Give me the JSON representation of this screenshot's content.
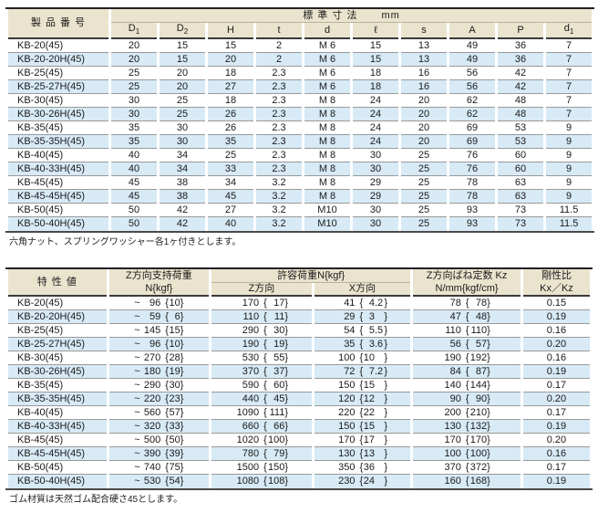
{
  "colors": {
    "header_bg": "#EAE3CE",
    "stripe_bg": "#D7EAF6"
  },
  "table1": {
    "product_header": "製 品 番 号",
    "dim_header": "標 準 寸 法",
    "dim_unit": "mm",
    "columns": [
      {
        "base": "D",
        "sub": "1"
      },
      {
        "base": "D",
        "sub": "2"
      },
      {
        "base": "H",
        "sub": ""
      },
      {
        "base": "t",
        "sub": ""
      },
      {
        "base": "d",
        "sub": ""
      },
      {
        "base": "ℓ",
        "sub": ""
      },
      {
        "base": "s",
        "sub": ""
      },
      {
        "base": "A",
        "sub": ""
      },
      {
        "base": "P",
        "sub": ""
      },
      {
        "base": "d",
        "sub": "1"
      }
    ],
    "rows": [
      {
        "name": "KB-20(45)",
        "values": [
          "20",
          "15",
          "15",
          "2",
          "M 6",
          "15",
          "13",
          "49",
          "36",
          "7"
        ]
      },
      {
        "name": "KB-20-20H(45)",
        "values": [
          "20",
          "15",
          "20",
          "2",
          "M 6",
          "15",
          "13",
          "49",
          "36",
          "7"
        ]
      },
      {
        "name": "KB-25(45)",
        "values": [
          "25",
          "20",
          "18",
          "2.3",
          "M 6",
          "18",
          "16",
          "56",
          "42",
          "7"
        ]
      },
      {
        "name": "KB-25-27H(45)",
        "values": [
          "25",
          "20",
          "27",
          "2.3",
          "M 6",
          "18",
          "16",
          "56",
          "42",
          "7"
        ]
      },
      {
        "name": "KB-30(45)",
        "values": [
          "30",
          "25",
          "18",
          "2.3",
          "M 8",
          "24",
          "20",
          "62",
          "48",
          "7"
        ]
      },
      {
        "name": "KB-30-26H(45)",
        "values": [
          "30",
          "25",
          "26",
          "2.3",
          "M 8",
          "24",
          "20",
          "62",
          "48",
          "7"
        ]
      },
      {
        "name": "KB-35(45)",
        "values": [
          "35",
          "30",
          "26",
          "2.3",
          "M 8",
          "24",
          "20",
          "69",
          "53",
          "9"
        ]
      },
      {
        "name": "KB-35-35H(45)",
        "values": [
          "35",
          "30",
          "35",
          "2.3",
          "M 8",
          "24",
          "20",
          "69",
          "53",
          "9"
        ]
      },
      {
        "name": "KB-40(45)",
        "values": [
          "40",
          "34",
          "25",
          "2.3",
          "M 8",
          "30",
          "25",
          "76",
          "60",
          "9"
        ]
      },
      {
        "name": "KB-40-33H(45)",
        "values": [
          "40",
          "34",
          "33",
          "2.3",
          "M 8",
          "30",
          "25",
          "76",
          "60",
          "9"
        ]
      },
      {
        "name": "KB-45(45)",
        "values": [
          "45",
          "38",
          "34",
          "3.2",
          "M 8",
          "29",
          "25",
          "78",
          "63",
          "9"
        ]
      },
      {
        "name": "KB-45-45H(45)",
        "values": [
          "45",
          "38",
          "45",
          "3.2",
          "M 8",
          "29",
          "25",
          "78",
          "63",
          "9"
        ]
      },
      {
        "name": "KB-50(45)",
        "values": [
          "50",
          "42",
          "27",
          "3.2",
          "M10",
          "30",
          "25",
          "93",
          "73",
          "11.5"
        ]
      },
      {
        "name": "KB-50-40H(45)",
        "values": [
          "50",
          "42",
          "40",
          "3.2",
          "M10",
          "30",
          "25",
          "93",
          "73",
          "11.5"
        ]
      }
    ],
    "footnote": "六角ナット、スプリングワッシャー各1ヶ付きとします。"
  },
  "table2": {
    "product_header": "特  性  値",
    "support_header_line1": "Z方向支持荷重",
    "support_header_line2": "N{kgf}",
    "allow_header": "許容荷重N{kgf}",
    "allow_sub_z": "Z方向",
    "allow_sub_x": "X方向",
    "kz_header_line1": "Z方向ばね定数 Kz",
    "kz_header_line2": "N/mm{kgf/cm}",
    "ratio_header_line1": "剛性比",
    "ratio_header_line2": "Kx／Kz",
    "tilde": "~",
    "rows": [
      {
        "name": "KB-20(45)",
        "support": [
          "96",
          "10"
        ],
        "allow_z": [
          "170",
          "17"
        ],
        "allow_x": [
          "41",
          "4.2"
        ],
        "kz": [
          "78",
          "78"
        ],
        "ratio": "0.15"
      },
      {
        "name": "KB-20-20H(45)",
        "support": [
          "59",
          "6"
        ],
        "allow_z": [
          "110",
          "11"
        ],
        "allow_x": [
          "29",
          "3"
        ],
        "kz": [
          "47",
          "48"
        ],
        "ratio": "0.19"
      },
      {
        "name": "KB-25(45)",
        "support": [
          "145",
          "15"
        ],
        "allow_z": [
          "290",
          "30"
        ],
        "allow_x": [
          "54",
          "5.5"
        ],
        "kz": [
          "110",
          "110"
        ],
        "ratio": "0.16"
      },
      {
        "name": "KB-25-27H(45)",
        "support": [
          "96",
          "10"
        ],
        "allow_z": [
          "190",
          "19"
        ],
        "allow_x": [
          "35",
          "3.6"
        ],
        "kz": [
          "56",
          "57"
        ],
        "ratio": "0.20"
      },
      {
        "name": "KB-30(45)",
        "support": [
          "270",
          "28"
        ],
        "allow_z": [
          "530",
          "55"
        ],
        "allow_x": [
          "100",
          "10"
        ],
        "kz": [
          "190",
          "192"
        ],
        "ratio": "0.16"
      },
      {
        "name": "KB-30-26H(45)",
        "support": [
          "180",
          "19"
        ],
        "allow_z": [
          "370",
          "37"
        ],
        "allow_x": [
          "72",
          "7.2"
        ],
        "kz": [
          "84",
          "87"
        ],
        "ratio": "0.19"
      },
      {
        "name": "KB-35(45)",
        "support": [
          "290",
          "30"
        ],
        "allow_z": [
          "590",
          "60"
        ],
        "allow_x": [
          "150",
          "15"
        ],
        "kz": [
          "140",
          "144"
        ],
        "ratio": "0.17"
      },
      {
        "name": "KB-35-35H(45)",
        "support": [
          "220",
          "23"
        ],
        "allow_z": [
          "440",
          "45"
        ],
        "allow_x": [
          "120",
          "12"
        ],
        "kz": [
          "90",
          "90"
        ],
        "ratio": "0.20"
      },
      {
        "name": "KB-40(45)",
        "support": [
          "560",
          "57"
        ],
        "allow_z": [
          "1090",
          "111"
        ],
        "allow_x": [
          "220",
          "22"
        ],
        "kz": [
          "200",
          "210"
        ],
        "ratio": "0.17"
      },
      {
        "name": "KB-40-33H(45)",
        "support": [
          "320",
          "33"
        ],
        "allow_z": [
          "660",
          "66"
        ],
        "allow_x": [
          "150",
          "15"
        ],
        "kz": [
          "130",
          "132"
        ],
        "ratio": "0.19"
      },
      {
        "name": "KB-45(45)",
        "support": [
          "500",
          "50"
        ],
        "allow_z": [
          "1020",
          "100"
        ],
        "allow_x": [
          "170",
          "17"
        ],
        "kz": [
          "170",
          "170"
        ],
        "ratio": "0.20"
      },
      {
        "name": "KB-45-45H(45)",
        "support": [
          "390",
          "39"
        ],
        "allow_z": [
          "780",
          "79"
        ],
        "allow_x": [
          "130",
          "13"
        ],
        "kz": [
          "100",
          "100"
        ],
        "ratio": "0.16"
      },
      {
        "name": "KB-50(45)",
        "support": [
          "740",
          "75"
        ],
        "allow_z": [
          "1500",
          "150"
        ],
        "allow_x": [
          "350",
          "36"
        ],
        "kz": [
          "370",
          "372"
        ],
        "ratio": "0.17"
      },
      {
        "name": "KB-50-40H(45)",
        "support": [
          "530",
          "54"
        ],
        "allow_z": [
          "1080",
          "108"
        ],
        "allow_x": [
          "230",
          "24"
        ],
        "kz": [
          "160",
          "168"
        ],
        "ratio": "0.19"
      }
    ],
    "footnote": "ゴム材質は天然ゴム配合硬さ45とします。"
  }
}
